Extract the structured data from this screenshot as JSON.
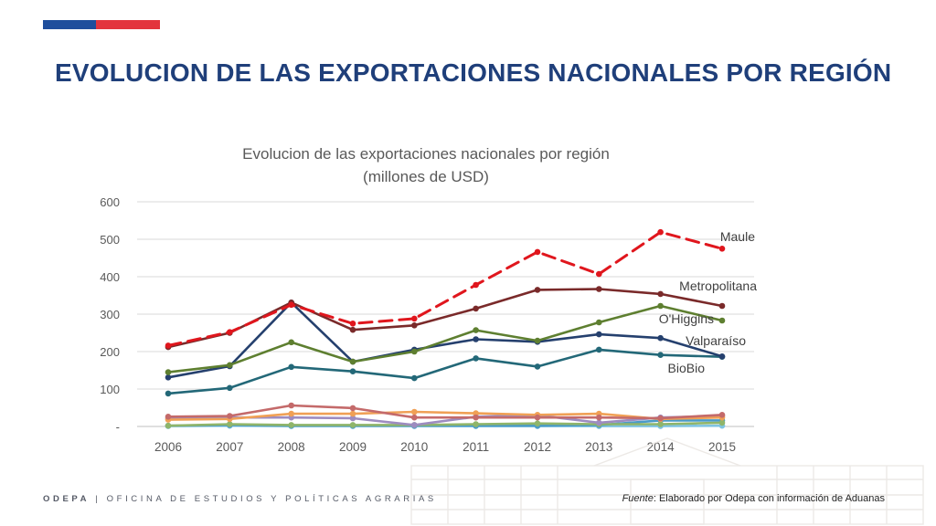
{
  "header": {
    "title": "EVOLUCION DE LAS EXPORTACIONES NACIONALES POR REGIÓN"
  },
  "footer": {
    "org_short": "ODEPA",
    "separator": "|",
    "org_name": "OFICINA DE ESTUDIOS Y POLÍTICAS AGRARIAS",
    "source_label": "Fuente",
    "source_text": ": Elaborado por Odepa con información de Aduanas"
  },
  "colors": {
    "flag_blue": "#1f4e9c",
    "flag_red": "#e3343d",
    "title": "#1f3f7a"
  },
  "chart_data": {
    "type": "line",
    "title": "Evolucion de las exportaciones nacionales por región",
    "subtitle": "(millones de USD)",
    "x": [
      "2006",
      "2007",
      "2008",
      "2009",
      "2010",
      "2011",
      "2012",
      "2013",
      "2014",
      "2015"
    ],
    "ylim": [
      0,
      600
    ],
    "yticks": [
      {
        "value": 0,
        "label": "-"
      },
      {
        "value": 100,
        "label": "100"
      },
      {
        "value": 200,
        "label": "200"
      },
      {
        "value": 300,
        "label": "300"
      },
      {
        "value": 400,
        "label": "400"
      },
      {
        "value": 500,
        "label": "500"
      },
      {
        "value": 600,
        "label": "600"
      }
    ],
    "grid": true,
    "legend": "labels-at-line-ends",
    "series": [
      {
        "name": "Maule",
        "color": "#e0161d",
        "dashed": true,
        "values": [
          216,
          252,
          325,
          275,
          288,
          378,
          466,
          407,
          519,
          475
        ]
      },
      {
        "name": "Metropolitana",
        "color": "#7a2a2a",
        "dashed": false,
        "values": [
          212,
          250,
          331,
          258,
          270,
          315,
          365,
          367,
          354,
          322
        ]
      },
      {
        "name": "O'Higgins",
        "color": "#5e7f30",
        "dashed": false,
        "values": [
          145,
          164,
          225,
          173,
          200,
          257,
          229,
          278,
          322,
          283
        ]
      },
      {
        "name": "Valparaíso",
        "color": "#25406e",
        "dashed": false,
        "values": [
          131,
          161,
          331,
          173,
          205,
          233,
          226,
          246,
          236,
          187
        ]
      },
      {
        "name": "BioBio",
        "color": "#236878",
        "dashed": false,
        "values": [
          88,
          103,
          159,
          147,
          129,
          182,
          160,
          205,
          191,
          186
        ]
      },
      {
        "name": "",
        "color": "#c46a6a",
        "dashed": false,
        "values": [
          26,
          28,
          56,
          49,
          24,
          24,
          24,
          24,
          22,
          31
        ]
      },
      {
        "name": "",
        "color": "#f0a055",
        "dashed": false,
        "values": [
          18,
          20,
          34,
          34,
          39,
          35,
          31,
          34,
          20,
          24
        ]
      },
      {
        "name": "",
        "color": "#9d8cc0",
        "dashed": false,
        "values": [
          22,
          24,
          24,
          22,
          4,
          26,
          30,
          10,
          24,
          28
        ]
      },
      {
        "name": "",
        "color": "#8fb56a",
        "dashed": false,
        "values": [
          2,
          6,
          4,
          4,
          4,
          6,
          8,
          6,
          6,
          10
        ]
      },
      {
        "name": "",
        "color": "#4a9bc8",
        "dashed": false,
        "values": [
          2,
          4,
          2,
          2,
          2,
          2,
          2,
          4,
          16,
          16
        ]
      },
      {
        "name": "",
        "color": "#7fc4e2",
        "dashed": false,
        "values": [
          1,
          2,
          1,
          1,
          1,
          1,
          1,
          1,
          1,
          2
        ]
      }
    ]
  }
}
